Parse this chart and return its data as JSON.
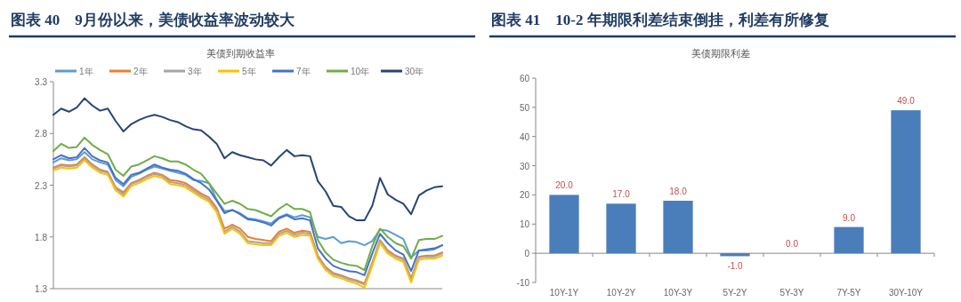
{
  "chart_data": [
    {
      "type": "line",
      "title": "图表 40　9月份以来，美债收益率波动较大",
      "subtitle": "美债到期收益率",
      "legend": "top",
      "categories": [
        null,
        null,
        null,
        null,
        null,
        null,
        null,
        null,
        null,
        null,
        null,
        null,
        null,
        null,
        null,
        null,
        null,
        null,
        null,
        null,
        null,
        null,
        null,
        null,
        null,
        null,
        null,
        null,
        null,
        null,
        null,
        null,
        null,
        null,
        null,
        null,
        null,
        null,
        null,
        null,
        null,
        null,
        null,
        null,
        null,
        null,
        null,
        null,
        null,
        null,
        null
      ],
      "ylim": [
        1.3,
        3.3
      ],
      "yticks": [
        1.3,
        1.8,
        2.3,
        2.8,
        3.3
      ],
      "series": [
        {
          "name": "1年",
          "color": "#5b9bd5",
          "values": [
            2.52,
            2.56,
            2.54,
            2.55,
            2.62,
            2.55,
            2.52,
            2.5,
            2.35,
            2.29,
            2.38,
            2.41,
            2.45,
            2.48,
            2.46,
            2.44,
            2.42,
            2.4,
            2.35,
            2.34,
            2.32,
            2.16,
            2.05,
            2.06,
            2.03,
            1.98,
            1.97,
            1.95,
            1.93,
            1.99,
            2.02,
            1.99,
            2.01,
            1.99,
            1.8,
            1.78,
            1.8,
            1.74,
            1.76,
            1.75,
            1.72,
            1.76,
            1.87,
            1.86,
            1.82,
            1.78,
            1.6,
            1.67,
            1.67,
            1.68,
            1.72
          ]
        },
        {
          "name": "2年",
          "color": "#ed7d31",
          "values": [
            2.47,
            2.5,
            2.49,
            2.5,
            2.57,
            2.5,
            2.45,
            2.43,
            2.28,
            2.23,
            2.32,
            2.35,
            2.39,
            2.42,
            2.4,
            2.35,
            2.34,
            2.32,
            2.27,
            2.22,
            2.18,
            2.08,
            1.88,
            1.92,
            1.88,
            1.8,
            1.78,
            1.77,
            1.76,
            1.85,
            1.88,
            1.84,
            1.86,
            1.85,
            1.62,
            1.51,
            1.45,
            1.43,
            1.4,
            1.38,
            1.35,
            1.55,
            1.77,
            1.67,
            1.62,
            1.59,
            1.4,
            1.61,
            1.62,
            1.62,
            1.65
          ]
        },
        {
          "name": "3年",
          "color": "#a5a5a5",
          "values": [
            2.46,
            2.49,
            2.48,
            2.49,
            2.56,
            2.49,
            2.44,
            2.42,
            2.27,
            2.21,
            2.31,
            2.34,
            2.38,
            2.41,
            2.39,
            2.33,
            2.32,
            2.3,
            2.25,
            2.2,
            2.16,
            2.06,
            1.85,
            1.9,
            1.85,
            1.76,
            1.75,
            1.74,
            1.74,
            1.83,
            1.86,
            1.82,
            1.84,
            1.83,
            1.61,
            1.5,
            1.44,
            1.42,
            1.39,
            1.37,
            1.34,
            1.54,
            1.76,
            1.66,
            1.61,
            1.58,
            1.39,
            1.6,
            1.61,
            1.61,
            1.64
          ]
        },
        {
          "name": "5年",
          "color": "#ffc000",
          "values": [
            2.44,
            2.47,
            2.46,
            2.47,
            2.54,
            2.47,
            2.42,
            2.4,
            2.25,
            2.19,
            2.29,
            2.32,
            2.36,
            2.39,
            2.37,
            2.31,
            2.3,
            2.28,
            2.23,
            2.18,
            2.14,
            2.04,
            1.83,
            1.88,
            1.83,
            1.74,
            1.73,
            1.72,
            1.72,
            1.81,
            1.84,
            1.8,
            1.82,
            1.81,
            1.59,
            1.48,
            1.42,
            1.4,
            1.37,
            1.35,
            1.31,
            1.52,
            1.74,
            1.64,
            1.59,
            1.56,
            1.36,
            1.58,
            1.59,
            1.59,
            1.62
          ]
        },
        {
          "name": "7年",
          "color": "#4472c4",
          "values": [
            2.55,
            2.59,
            2.56,
            2.57,
            2.66,
            2.58,
            2.54,
            2.52,
            2.37,
            2.31,
            2.4,
            2.42,
            2.46,
            2.5,
            2.47,
            2.45,
            2.44,
            2.41,
            2.36,
            2.32,
            2.26,
            2.15,
            2.03,
            2.06,
            2.02,
            1.97,
            1.96,
            1.94,
            1.91,
            1.98,
            2.01,
            1.97,
            1.98,
            1.96,
            1.69,
            1.59,
            1.52,
            1.49,
            1.47,
            1.46,
            1.43,
            1.64,
            1.83,
            1.74,
            1.67,
            1.63,
            1.47,
            1.67,
            1.68,
            1.69,
            1.72
          ]
        },
        {
          "name": "10年",
          "color": "#70ad47",
          "values": [
            2.63,
            2.7,
            2.66,
            2.67,
            2.76,
            2.69,
            2.64,
            2.6,
            2.45,
            2.39,
            2.48,
            2.5,
            2.54,
            2.58,
            2.56,
            2.53,
            2.53,
            2.5,
            2.45,
            2.41,
            2.32,
            2.22,
            2.12,
            2.15,
            2.12,
            2.07,
            2.06,
            2.03,
            2.0,
            2.07,
            2.12,
            2.07,
            2.07,
            2.04,
            1.77,
            1.65,
            1.58,
            1.55,
            1.53,
            1.52,
            1.48,
            1.71,
            1.88,
            1.8,
            1.74,
            1.71,
            1.59,
            1.77,
            1.78,
            1.78,
            1.81
          ]
        },
        {
          "name": "30年",
          "color": "#264478",
          "values": [
            2.98,
            3.04,
            3.01,
            3.05,
            3.14,
            3.07,
            3.02,
            3.04,
            2.92,
            2.82,
            2.89,
            2.93,
            2.96,
            2.98,
            2.96,
            2.93,
            2.91,
            2.87,
            2.84,
            2.83,
            2.77,
            2.7,
            2.56,
            2.62,
            2.59,
            2.57,
            2.55,
            2.54,
            2.49,
            2.57,
            2.64,
            2.58,
            2.59,
            2.58,
            2.34,
            2.24,
            2.1,
            2.09,
            2.0,
            1.96,
            1.96,
            2.1,
            2.37,
            2.21,
            2.16,
            2.12,
            2.02,
            2.2,
            2.25,
            2.28,
            2.29
          ]
        }
      ]
    },
    {
      "type": "bar",
      "title": "图表 41　10-2 年期限利差结束倒挂，利差有所修复",
      "subtitle": "美债期限利差",
      "categories": [
        "10Y-1Y",
        "10Y-2Y",
        "10Y-3Y",
        "5Y-2Y",
        "5Y-3Y",
        "7Y-5Y",
        "30Y-10Y"
      ],
      "values": [
        20,
        17,
        18,
        -1,
        0,
        9,
        49
      ],
      "color": "#4a7ebb",
      "value_labels": [
        "20.0",
        "17.0",
        "18.0",
        "-1.0",
        "0.0",
        "9.0",
        "49.0"
      ],
      "ylim": [
        -10,
        60
      ],
      "yticks": [
        -10,
        0,
        10,
        20,
        30,
        40,
        50,
        60
      ]
    }
  ]
}
